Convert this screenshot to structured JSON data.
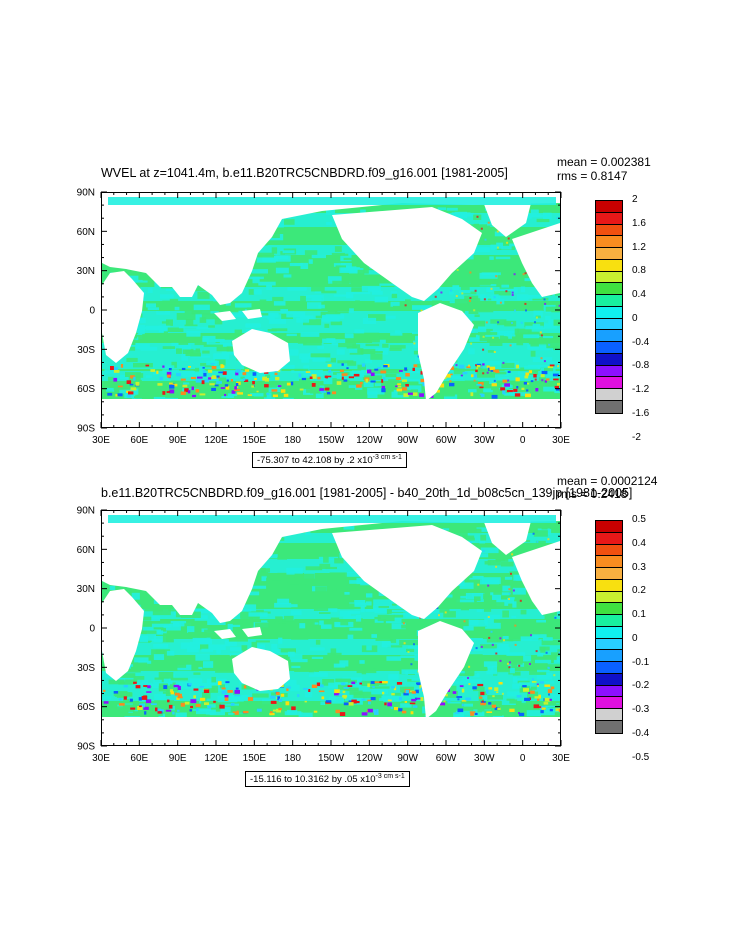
{
  "chart_data": [
    {
      "type": "heatmap",
      "title": "WVEL at z=1041.4m, b.e11.B20TRC5CNBDRD.f09_g16.001 [1981-2005]",
      "stats": {
        "mean": "mean = 0.002381",
        "rms": "rms = 0.8147"
      },
      "range_text": "-75.307 to 42.108 by .2 x10",
      "range_unit": "-3 cm s",
      "x_ticks": [
        "30E",
        "60E",
        "90E",
        "120E",
        "150E",
        "180",
        "150W",
        "120W",
        "90W",
        "60W",
        "30W",
        "0",
        "30E"
      ],
      "y_ticks": [
        "90N",
        "60N",
        "30N",
        "0",
        "30S",
        "60S",
        "90S"
      ],
      "colorbar_labels": [
        "2",
        "1.6",
        "1.2",
        "0.8",
        "0.4",
        "0",
        "-0.4",
        "-0.8",
        "-1.2",
        "-1.6",
        "-2"
      ],
      "colorbar_colors": [
        "#c80000",
        "#e81818",
        "#f05010",
        "#f88c20",
        "#f8b040",
        "#f8e010",
        "#c8f030",
        "#40e040",
        "#18f0a0",
        "#10f0f0",
        "#28d0ff",
        "#18a0ff",
        "#0a60ff",
        "#1010c8",
        "#8c10ff",
        "#e010e0",
        "#d0d0d0",
        "#707070"
      ]
    },
    {
      "type": "heatmap",
      "title": "b.e11.B20TRC5CNBDRD.f09_g16.001 [1981-2005] - b40_20th_1d_b08c5cn_139jp [1981-2005]",
      "stats": {
        "mean": "mean = 0.0002124",
        "rms": "rms = 0.2418"
      },
      "range_text": "-15.116 to 10.3162 by .05 x10",
      "range_unit": "-3 cm s",
      "x_ticks": [
        "30E",
        "60E",
        "90E",
        "120E",
        "150E",
        "180",
        "150W",
        "120W",
        "90W",
        "60W",
        "30W",
        "0",
        "30E"
      ],
      "y_ticks": [
        "90N",
        "60N",
        "30N",
        "0",
        "30S",
        "60S",
        "90S"
      ],
      "colorbar_labels": [
        "0.5",
        "0.4",
        "0.3",
        "0.2",
        "0.1",
        "0",
        "-0.1",
        "-0.2",
        "-0.3",
        "-0.4",
        "-0.5"
      ],
      "colorbar_colors": [
        "#c80000",
        "#e81818",
        "#f05010",
        "#f88c20",
        "#f8b040",
        "#f8e010",
        "#c8f030",
        "#40e040",
        "#18f0a0",
        "#10f0f0",
        "#28d0ff",
        "#18a0ff",
        "#0a60ff",
        "#1010c8",
        "#8c10ff",
        "#e010e0",
        "#d0d0d0",
        "#707070"
      ]
    }
  ],
  "colors": {
    "ocean_main": "#3ce87a",
    "ocean_cyan": "#22f0e0",
    "land": "#ffffff"
  }
}
